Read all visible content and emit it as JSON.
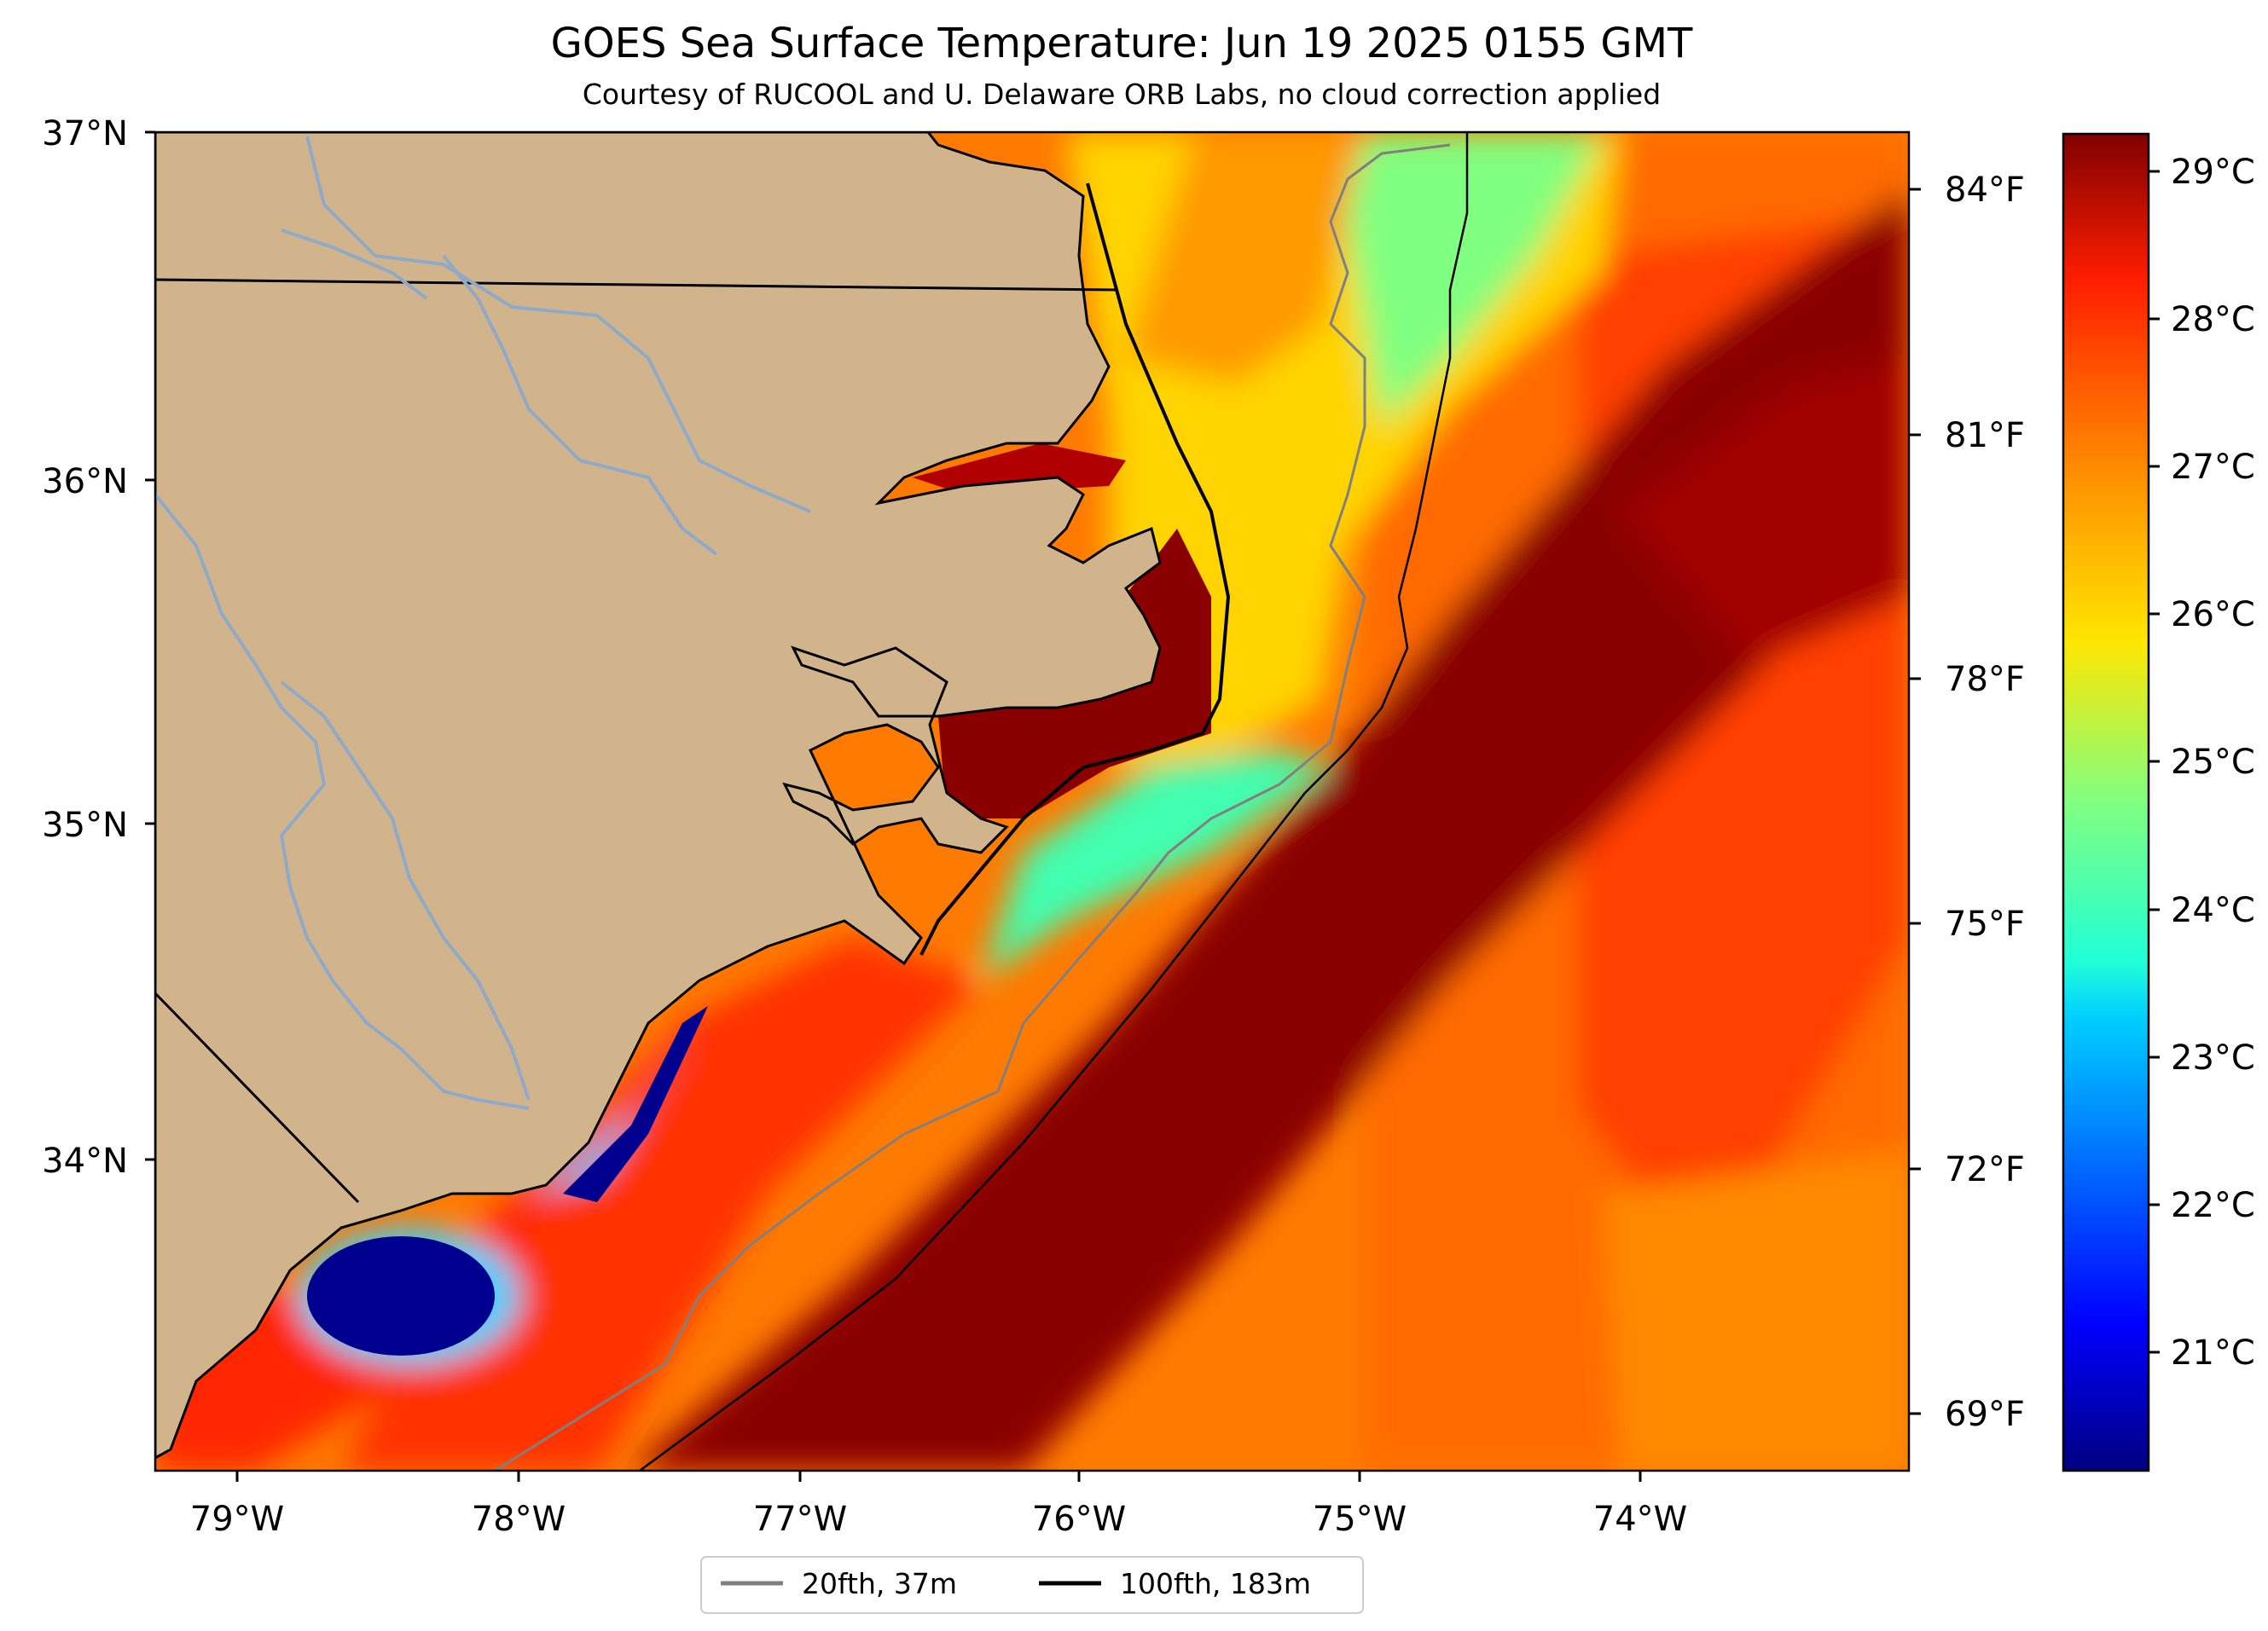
{
  "title": "GOES Sea Surface Temperature: Jun 19 2025 0155 GMT",
  "subtitle": "Courtesy of RUCOOL and U. Delaware ORB Labs, no cloud correction applied",
  "map": {
    "lat_labels": [
      "37°N",
      "36°N",
      "35°N",
      "34°N"
    ],
    "lon_labels": [
      "79°W",
      "78°W",
      "77°W",
      "76°W",
      "75°W",
      "74°W"
    ],
    "f_labels": [
      "84°F",
      "81°F",
      "78°F",
      "75°F",
      "72°F",
      "69°F"
    ],
    "land_color": "#d2b48c",
    "river_color": "#8fa9c9"
  },
  "colorbar": {
    "colormap": "jet",
    "labels": [
      "29°C",
      "28°C",
      "27°C",
      "26°C",
      "25°C",
      "24°C",
      "23°C",
      "22°C",
      "21°C"
    ]
  },
  "legend": {
    "items": [
      {
        "label": "20fth, 37m",
        "color": "#808080"
      },
      {
        "label": "100fth, 183m",
        "color": "#000000"
      }
    ]
  }
}
